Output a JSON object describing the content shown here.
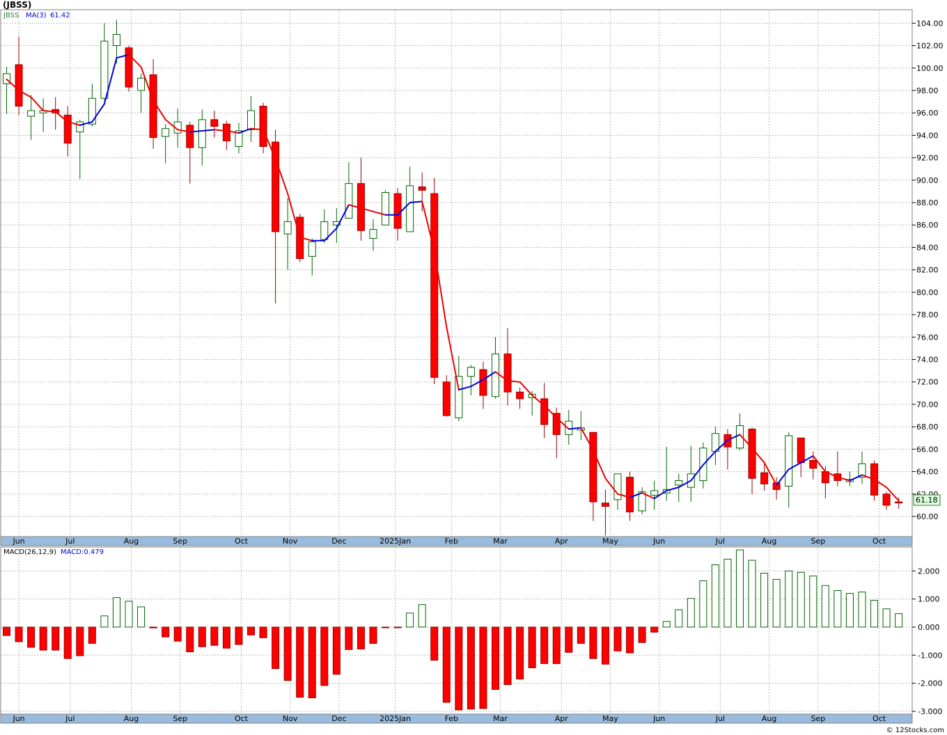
{
  "chart_data": [
    {
      "type": "candlestick",
      "title": "(JBSS)",
      "legend": [
        {
          "text": "JBSS",
          "color": "#2e7d32"
        },
        {
          "text": "MA(3)",
          "color": "#0000cc"
        },
        {
          "text": "61.42",
          "color": "#0000cc"
        }
      ],
      "last_price_label": "61.18",
      "ylim": [
        58.2,
        105.2
      ],
      "y_ticks": [
        "104.00",
        "102.00",
        "100.00",
        "98.00",
        "96.00",
        "94.00",
        "92.00",
        "90.00",
        "88.00",
        "86.00",
        "84.00",
        "82.00",
        "80.00",
        "78.00",
        "76.00",
        "74.00",
        "72.00",
        "70.00",
        "68.00",
        "66.00",
        "64.00",
        "62.00",
        "60.00"
      ],
      "x_months": [
        {
          "label": "Jun",
          "index": 1
        },
        {
          "label": "Jul",
          "index": 5.2
        },
        {
          "label": "Aug",
          "index": 10.2
        },
        {
          "label": "Sep",
          "index": 14.2
        },
        {
          "label": "Oct",
          "index": 19.2
        },
        {
          "label": "Nov",
          "index": 23.2
        },
        {
          "label": "Dec",
          "index": 27.2
        },
        {
          "label": "2025Jan",
          "index": 31.8
        },
        {
          "label": "Feb",
          "index": 36.4
        },
        {
          "label": "Mar",
          "index": 40.4
        },
        {
          "label": "Apr",
          "index": 45.4
        },
        {
          "label": "May",
          "index": 49.4
        },
        {
          "label": "Jun",
          "index": 53.4
        },
        {
          "label": "Jul",
          "index": 58.4
        },
        {
          "label": "Aug",
          "index": 62.4
        },
        {
          "label": "Sep",
          "index": 66.4
        },
        {
          "label": "Oct",
          "index": 71.4
        }
      ],
      "candles": [
        {
          "o": 98.6,
          "h": 100.1,
          "l": 95.9,
          "c": 99.5
        },
        {
          "o": 100.3,
          "h": 102.8,
          "l": 95.8,
          "c": 96.6
        },
        {
          "o": 95.7,
          "h": 97.6,
          "l": 93.6,
          "c": 96.2
        },
        {
          "o": 96.0,
          "h": 97.3,
          "l": 94.3,
          "c": 96.2
        },
        {
          "o": 96.3,
          "h": 97.4,
          "l": 94.5,
          "c": 96.0
        },
        {
          "o": 95.8,
          "h": 96.6,
          "l": 92.1,
          "c": 93.3
        },
        {
          "o": 94.3,
          "h": 95.4,
          "l": 90.1,
          "c": 95.2
        },
        {
          "o": 95.0,
          "h": 98.6,
          "l": 94.8,
          "c": 97.3
        },
        {
          "o": 97.3,
          "h": 104.0,
          "l": 97.1,
          "c": 102.4
        },
        {
          "o": 102.0,
          "h": 104.3,
          "l": 100.4,
          "c": 103.0
        },
        {
          "o": 101.8,
          "h": 102.0,
          "l": 97.9,
          "c": 98.3
        },
        {
          "o": 98.0,
          "h": 99.5,
          "l": 96.0,
          "c": 99.1
        },
        {
          "o": 99.4,
          "h": 100.8,
          "l": 92.8,
          "c": 93.8
        },
        {
          "o": 93.9,
          "h": 95.0,
          "l": 91.5,
          "c": 94.6
        },
        {
          "o": 94.2,
          "h": 96.4,
          "l": 92.9,
          "c": 95.2
        },
        {
          "o": 94.9,
          "h": 95.2,
          "l": 89.7,
          "c": 92.9
        },
        {
          "o": 92.9,
          "h": 96.3,
          "l": 91.3,
          "c": 95.4
        },
        {
          "o": 95.4,
          "h": 96.2,
          "l": 93.8,
          "c": 94.8
        },
        {
          "o": 95.0,
          "h": 95.3,
          "l": 92.7,
          "c": 93.5
        },
        {
          "o": 93.0,
          "h": 95.1,
          "l": 92.4,
          "c": 94.4
        },
        {
          "o": 94.5,
          "h": 97.5,
          "l": 93.4,
          "c": 96.2
        },
        {
          "o": 96.6,
          "h": 96.9,
          "l": 92.4,
          "c": 93.0
        },
        {
          "o": 93.4,
          "h": 94.5,
          "l": 79.0,
          "c": 85.4
        },
        {
          "o": 85.2,
          "h": 88.4,
          "l": 82.0,
          "c": 86.3
        },
        {
          "o": 86.7,
          "h": 87.0,
          "l": 82.7,
          "c": 83.0
        },
        {
          "o": 83.2,
          "h": 84.8,
          "l": 81.5,
          "c": 84.5
        },
        {
          "o": 84.7,
          "h": 87.4,
          "l": 84.4,
          "c": 86.3
        },
        {
          "o": 86.0,
          "h": 87.5,
          "l": 84.4,
          "c": 86.3
        },
        {
          "o": 86.6,
          "h": 91.6,
          "l": 86.6,
          "c": 89.7
        },
        {
          "o": 89.7,
          "h": 92.0,
          "l": 84.6,
          "c": 85.5
        },
        {
          "o": 84.8,
          "h": 86.5,
          "l": 83.7,
          "c": 85.6
        },
        {
          "o": 86.0,
          "h": 89.1,
          "l": 86.0,
          "c": 88.9
        },
        {
          "o": 88.8,
          "h": 89.3,
          "l": 84.6,
          "c": 85.7
        },
        {
          "o": 85.4,
          "h": 91.2,
          "l": 85.4,
          "c": 89.5
        },
        {
          "o": 89.4,
          "h": 90.7,
          "l": 87.2,
          "c": 89.1
        },
        {
          "o": 88.8,
          "h": 90.2,
          "l": 71.8,
          "c": 72.4
        },
        {
          "o": 72.0,
          "h": 72.6,
          "l": 68.9,
          "c": 69.0
        },
        {
          "o": 68.8,
          "h": 74.3,
          "l": 68.5,
          "c": 72.5
        },
        {
          "o": 72.5,
          "h": 73.5,
          "l": 70.8,
          "c": 73.3
        },
        {
          "o": 73.1,
          "h": 73.8,
          "l": 69.6,
          "c": 70.8
        },
        {
          "o": 70.7,
          "h": 76.0,
          "l": 70.5,
          "c": 74.5
        },
        {
          "o": 74.5,
          "h": 76.8,
          "l": 69.9,
          "c": 71.1
        },
        {
          "o": 71.1,
          "h": 71.5,
          "l": 69.6,
          "c": 70.5
        },
        {
          "o": 70.6,
          "h": 71.2,
          "l": 69.0,
          "c": 70.9
        },
        {
          "o": 70.5,
          "h": 71.9,
          "l": 67.0,
          "c": 68.2
        },
        {
          "o": 69.2,
          "h": 69.7,
          "l": 65.2,
          "c": 67.3
        },
        {
          "o": 67.3,
          "h": 69.5,
          "l": 66.4,
          "c": 68.5
        },
        {
          "o": 67.7,
          "h": 69.4,
          "l": 66.8,
          "c": 67.9
        },
        {
          "o": 67.5,
          "h": 67.5,
          "l": 59.6,
          "c": 61.3
        },
        {
          "o": 61.2,
          "h": 62.4,
          "l": 58.3,
          "c": 60.9
        },
        {
          "o": 61.5,
          "h": 63.8,
          "l": 60.6,
          "c": 63.8
        },
        {
          "o": 63.5,
          "h": 64.0,
          "l": 59.6,
          "c": 60.4
        },
        {
          "o": 60.5,
          "h": 62.6,
          "l": 60.2,
          "c": 62.2
        },
        {
          "o": 61.9,
          "h": 63.2,
          "l": 60.6,
          "c": 62.3
        },
        {
          "o": 62.1,
          "h": 66.2,
          "l": 61.4,
          "c": 62.4
        },
        {
          "o": 62.8,
          "h": 63.8,
          "l": 61.3,
          "c": 63.2
        },
        {
          "o": 62.6,
          "h": 66.3,
          "l": 61.3,
          "c": 63.8
        },
        {
          "o": 63.2,
          "h": 66.6,
          "l": 62.5,
          "c": 66.1
        },
        {
          "o": 65.8,
          "h": 68.0,
          "l": 64.6,
          "c": 67.4
        },
        {
          "o": 67.3,
          "h": 67.8,
          "l": 64.2,
          "c": 66.2
        },
        {
          "o": 66.1,
          "h": 69.2,
          "l": 65.9,
          "c": 68.1
        },
        {
          "o": 67.8,
          "h": 67.9,
          "l": 62.0,
          "c": 63.4
        },
        {
          "o": 63.9,
          "h": 64.8,
          "l": 62.3,
          "c": 62.9
        },
        {
          "o": 63.0,
          "h": 63.5,
          "l": 61.5,
          "c": 62.4
        },
        {
          "o": 62.7,
          "h": 67.5,
          "l": 60.8,
          "c": 67.2
        },
        {
          "o": 67.0,
          "h": 67.0,
          "l": 63.5,
          "c": 64.8
        },
        {
          "o": 65.0,
          "h": 65.8,
          "l": 63.3,
          "c": 64.3
        },
        {
          "o": 64.0,
          "h": 64.5,
          "l": 61.6,
          "c": 63.0
        },
        {
          "o": 63.8,
          "h": 65.8,
          "l": 62.7,
          "c": 63.2
        },
        {
          "o": 63.1,
          "h": 64.0,
          "l": 62.7,
          "c": 63.3
        },
        {
          "o": 63.5,
          "h": 65.8,
          "l": 62.9,
          "c": 64.7
        },
        {
          "o": 64.7,
          "h": 65.0,
          "l": 61.4,
          "c": 61.9
        },
        {
          "o": 62.0,
          "h": 62.2,
          "l": 60.6,
          "c": 61.0
        },
        {
          "o": 61.3,
          "h": 61.7,
          "l": 60.7,
          "c": 61.2
        }
      ],
      "ma3": [
        99.0,
        98.0,
        97.4,
        96.2,
        96.1,
        95.2,
        94.9,
        95.2,
        96.8,
        100.9,
        101.2,
        100.1,
        97.1,
        95.4,
        94.5,
        94.3,
        94.4,
        94.5,
        94.4,
        94.2,
        94.6,
        94.5,
        91.9,
        88.8,
        84.9,
        84.6,
        84.6,
        85.7,
        87.8,
        87.5,
        87.2,
        86.9,
        86.9,
        88.0,
        88.1,
        83.7,
        76.9,
        71.3,
        71.6,
        72.2,
        72.9,
        72.1,
        72.0,
        70.8,
        69.9,
        68.8,
        67.8,
        67.9,
        65.9,
        63.4,
        62.0,
        61.7,
        62.1,
        61.6,
        62.3,
        62.6,
        63.2,
        64.6,
        65.8,
        66.8,
        67.3,
        66.1,
        64.8,
        62.8,
        64.2,
        64.8,
        65.4,
        64.0,
        63.5,
        63.2,
        63.7,
        63.3,
        62.6,
        61.4
      ],
      "ma_colors": {
        "up": "#0000dd",
        "down": "#ee0000"
      },
      "colors": {
        "up_body": "#ffffff",
        "up_border": "#006400",
        "down_body": "#ff0000",
        "down_border": "#990000",
        "grid": "#bbbbbb",
        "axis_bg": "#99bbdd"
      }
    },
    {
      "type": "bar",
      "title": "MACD(26,12,9)",
      "legend": [
        {
          "text": "MACD(26,12,9)",
          "color": "#000000"
        },
        {
          "text": "MACD:0.479",
          "color": "#0000cc"
        }
      ],
      "ylim": [
        -3.1,
        2.85
      ],
      "y_ticks": [
        "2.000",
        "1.000",
        "0.000",
        "-1.000",
        "-2.000",
        "-3.000"
      ],
      "values": [
        -0.3,
        -0.52,
        -0.72,
        -0.82,
        -0.82,
        -1.12,
        -1.02,
        -0.58,
        0.4,
        1.05,
        0.92,
        0.72,
        -0.03,
        -0.35,
        -0.5,
        -0.88,
        -0.7,
        -0.65,
        -0.75,
        -0.62,
        -0.28,
        -0.38,
        -1.48,
        -1.9,
        -2.5,
        -2.52,
        -2.08,
        -1.68,
        -0.8,
        -0.78,
        -0.58,
        -0.02,
        -0.02,
        0.5,
        0.8,
        -1.18,
        -2.68,
        -2.95,
        -2.92,
        -2.9,
        -2.22,
        -2.05,
        -1.85,
        -1.45,
        -1.3,
        -1.3,
        -0.9,
        -0.58,
        -1.12,
        -1.32,
        -0.85,
        -0.92,
        -0.55,
        -0.18,
        0.2,
        0.62,
        1.02,
        1.65,
        2.22,
        2.42,
        2.75,
        2.38,
        1.92,
        1.7,
        2.0,
        1.95,
        1.82,
        1.48,
        1.3,
        1.2,
        1.25,
        0.95,
        0.65,
        0.48
      ],
      "colors": {
        "positive_fill": "#ffffff",
        "positive_border": "#006400",
        "negative_fill": "#ff0000",
        "negative_border": "#990000"
      }
    }
  ],
  "footer": {
    "copyright": "© 12Stocks.com"
  }
}
